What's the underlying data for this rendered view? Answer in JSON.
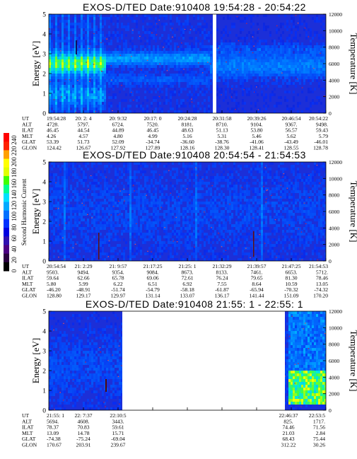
{
  "colorbar": {
    "label": "Second Harmonic Current",
    "ticks": [
      "0",
      "20",
      "40",
      "60",
      "80",
      "100",
      "120",
      "140",
      "160",
      "180",
      "200",
      "220",
      "240"
    ],
    "colors": [
      "#000000",
      "#2a0040",
      "#4b0082",
      "#3010b0",
      "#0000e0",
      "#0030ff",
      "#0070ff",
      "#00aaff",
      "#00e0ff",
      "#00ff90",
      "#40ff00",
      "#e0ff00",
      "#ffff00",
      "#ffa000",
      "#ff2000",
      "#ff0000"
    ]
  },
  "chart_data": [
    {
      "type": "heatmap",
      "title": "EXOS-D/TED   Date:910408   19:54:28 - 20:54:22",
      "ylabel": "Energy [eV]",
      "ylabel_right": "Temperature [K]",
      "ylim": [
        0,
        5
      ],
      "yticks": [
        "0",
        "1",
        "2",
        "3",
        "4",
        "5"
      ],
      "yticks_right": [
        "0",
        "2000",
        "4000",
        "6000",
        "8000",
        "10000",
        "12000"
      ],
      "row_labels": [
        "UT",
        "ALT",
        "ILAT",
        "MLT",
        "GLAT",
        "GLON"
      ],
      "columns": [
        [
          "19:54:28",
          "4728.",
          "46.45",
          "4.26",
          "53.39",
          "124.42"
        ],
        [
          "20: 2: 4",
          "5797.",
          "44.54",
          "4.57",
          "51.73",
          "126.67"
        ],
        [
          "20: 9:32",
          "6724.",
          "44.89",
          "4.80",
          "52.09",
          "127.92"
        ],
        [
          "20:17: 0",
          "7520.",
          "46.45",
          "4.99",
          "-34.74",
          "127.89"
        ],
        [
          "20:24:28",
          "8181.",
          "48.63",
          "5.16",
          "-36.60",
          "128.16"
        ],
        [
          "20:31:58",
          "8710.",
          "51.13",
          "5.31",
          "-38.76",
          "128.30"
        ],
        [
          "20:39:26",
          "9104.",
          "53.80",
          "5.46",
          "-41.06",
          "128.41"
        ],
        [
          "20:46:54",
          "9367.",
          "56.57",
          "5.62",
          "-43.49",
          "128.55"
        ],
        [
          "20:54:22",
          "9498.",
          "59.43",
          "5.79",
          "-46.01",
          "128.78"
        ]
      ],
      "data_gaps": [
        [
          "20:31:00",
          "20:31:30"
        ]
      ]
    },
    {
      "type": "heatmap",
      "title": "EXOS-D/TED   Date:910408   20:54:54 - 21:54:53",
      "ylabel": "Energy [eV]",
      "ylabel_right": "Temperature [K]",
      "ylim": [
        0,
        5
      ],
      "yticks": [
        "0",
        "1",
        "2",
        "3",
        "4",
        "5"
      ],
      "yticks_right": [
        "0",
        "2000",
        "4000",
        "6000",
        "8000",
        "10000",
        "12000"
      ],
      "row_labels": [
        "UT",
        "ALT",
        "ILAT",
        "MLT",
        "GLAT",
        "GLON"
      ],
      "columns": [
        [
          "20:54:54",
          "9503.",
          "59.64",
          "5.80",
          "-46.20",
          "128.80"
        ],
        [
          "21: 2:29",
          "9494.",
          "62.66",
          "5.99",
          "-48.91",
          "129.17"
        ],
        [
          "21: 9:57",
          "9354.",
          "65.78",
          "6.22",
          "-51.74",
          "129.97"
        ],
        [
          "21:17:25",
          "9084.",
          "69.06",
          "6.51",
          "-54.79",
          "131.14"
        ],
        [
          "21:25: 1",
          "8673.",
          "72.61",
          "6.92",
          "-58.18",
          "133.07"
        ],
        [
          "21:32:29",
          "8133.",
          "76.24",
          "7.55",
          "-61.87",
          "136.17"
        ],
        [
          "21:39:57",
          "7461.",
          "79.65",
          "8.64",
          "-65.94",
          "141.44"
        ],
        [
          "21:47:25",
          "6653.",
          "81.30",
          "10.59",
          "-70.32",
          "151.09"
        ],
        [
          "21:54:53",
          "5712.",
          "78.46",
          "13.05",
          "-74.32",
          "170.20"
        ]
      ],
      "data_gaps": []
    },
    {
      "type": "heatmap",
      "title": "EXOS-D/TED   Date:910408   21:55: 1 - 22:55: 1",
      "ylabel": "Energy [eV]",
      "ylabel_right": "Temperature [K]",
      "ylim": [
        0,
        5
      ],
      "yticks": [
        "0",
        "1",
        "2",
        "3",
        "4",
        "5"
      ],
      "yticks_right": [
        "0",
        "2000",
        "4000",
        "6000",
        "8000",
        "10000",
        "12000"
      ],
      "row_labels": [
        "UT",
        "ALT",
        "ILAT",
        "MLT",
        "GLAT",
        "GLON"
      ],
      "columns": [
        [
          "21:55: 1",
          "5694.",
          "78.37",
          "13.09",
          "-74.38",
          "170.67"
        ],
        [
          "22: 7:37",
          "4608.",
          "70.83",
          "14.78",
          "-75.24",
          "203.91"
        ],
        [
          "22:10:5",
          "3443.",
          "59.61",
          "15.71",
          "-69.04",
          "239.67"
        ],
        [
          "22:46:37",
          "825.",
          "74.46",
          "21.03",
          "68.43",
          "312.22"
        ],
        [
          "22:53:5",
          "1717.",
          "71.56",
          "2.84",
          "75.44",
          "30.26"
        ]
      ],
      "data_gaps": [
        [
          "22:11:00",
          "22:46:00"
        ]
      ]
    }
  ]
}
